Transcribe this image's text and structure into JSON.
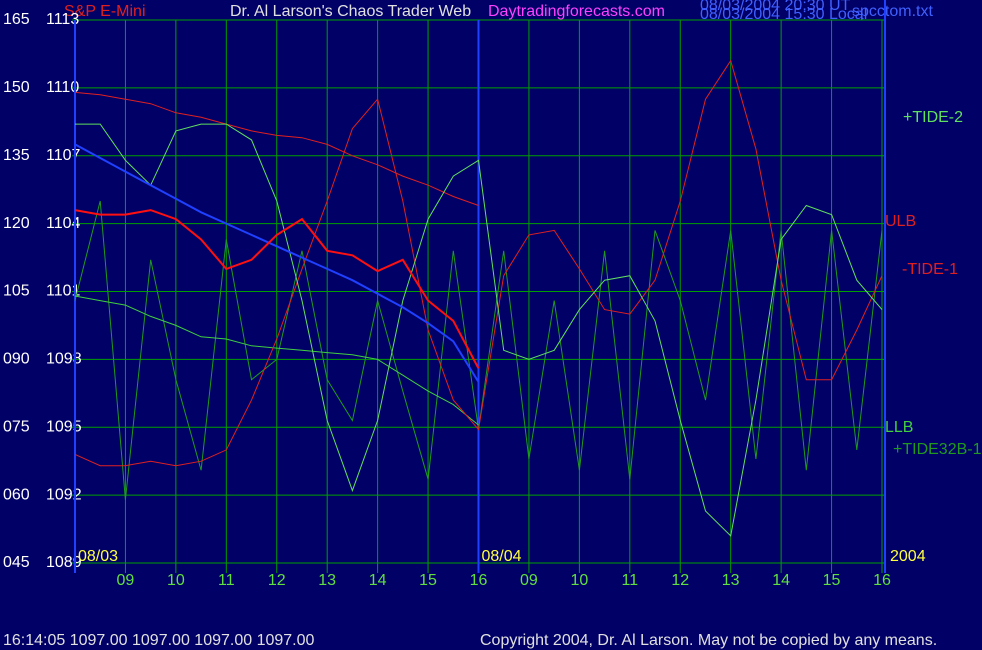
{
  "chart_data": {
    "type": "line",
    "title": "S&P E-Mini",
    "subtitle": "Dr. Al Larson's Chaos Trader Web",
    "website": "Daytradingforecasts.com",
    "timestamps": [
      "08/03/2004 20:30 UT",
      "08/03/2004 15:30 Local"
    ],
    "file_name": "spcctom.txt",
    "status_line": "16:14:05  1097.00 1097.00 1097.00 1097.00",
    "copyright": "Copyright 2004, Dr. Al Larson. May not be copied by any means.",
    "year": "2004",
    "date_labels": [
      {
        "value": 0,
        "label": "08/03"
      },
      {
        "value": 8,
        "label": "08/04"
      }
    ],
    "xlim": [
      0,
      16
    ],
    "xticks": [
      {
        "value": 1,
        "label": "09"
      },
      {
        "value": 2,
        "label": "10"
      },
      {
        "value": 3,
        "label": "11"
      },
      {
        "value": 4,
        "label": "12"
      },
      {
        "value": 5,
        "label": "13"
      },
      {
        "value": 6,
        "label": "14"
      },
      {
        "value": 7,
        "label": "15"
      },
      {
        "value": 8,
        "label": "16"
      },
      {
        "value": 9,
        "label": "09"
      },
      {
        "value": 10,
        "label": "10"
      },
      {
        "value": 11,
        "label": "11"
      },
      {
        "value": 12,
        "label": "12"
      },
      {
        "value": 13,
        "label": "13"
      },
      {
        "value": 14,
        "label": "14"
      },
      {
        "value": 15,
        "label": "15"
      },
      {
        "value": 16,
        "label": "16"
      }
    ],
    "ylim": [
      1089,
      1113
    ],
    "yticks": [
      1089,
      1092,
      1095,
      1098,
      1101,
      1104,
      1107,
      1110,
      1113
    ],
    "y2lim": [
      45,
      165
    ],
    "y2ticks": [
      {
        "value": 45,
        "label": "045"
      },
      {
        "value": 60,
        "label": "060"
      },
      {
        "value": 75,
        "label": "075"
      },
      {
        "value": 90,
        "label": "090"
      },
      105,
      120,
      135,
      150,
      165
    ],
    "grid": true,
    "x": [
      0,
      0.5,
      1,
      1.5,
      2,
      2.5,
      3,
      3.5,
      4,
      4.5,
      5,
      5.5,
      6,
      6.5,
      7,
      7.5,
      8,
      8.5,
      9,
      9.5,
      10,
      10.5,
      11,
      11.5,
      12,
      12.5,
      13,
      13.5,
      14,
      14.5,
      15,
      15.5,
      16
    ],
    "series": [
      {
        "name": "+TIDE32B-1",
        "color": "#1f9a1f",
        "values": [
          1100.6,
          1105.0,
          1091.8,
          1102.4,
          1097.1,
          1093.1,
          1103.3,
          1097.1,
          1098.0,
          1102.8,
          1097.1,
          1095.3,
          1100.6,
          1096.6,
          1092.7,
          1102.8,
          1094.9,
          1102.8,
          1093.6,
          1100.6,
          1093.1,
          1102.8,
          1092.7,
          1103.7,
          1100.6,
          1096.2,
          1103.7,
          1093.6,
          1103.7,
          1093.1,
          1103.7,
          1094.0,
          1103.7
        ]
      },
      {
        "name": "ULB",
        "color": "#e02020",
        "values": [
          1109.8,
          1109.7,
          1109.5,
          1109.3,
          1108.9,
          1108.7,
          1108.4,
          1108.1,
          1107.9,
          1107.8,
          1107.5,
          1107.0,
          1106.6,
          1106.1,
          1105.7,
          1105.2,
          1104.8,
          null,
          null,
          null,
          null,
          null,
          null,
          null,
          null,
          null,
          null,
          null,
          null,
          null,
          null,
          null,
          null
        ]
      },
      {
        "name": "LLB",
        "color": "#40d040",
        "values": [
          1100.8,
          1100.6,
          1100.4,
          1099.9,
          1099.5,
          1099.0,
          1098.9,
          1098.6,
          1098.5,
          1098.4,
          1098.3,
          1098.2,
          1098.0,
          1097.3,
          1096.6,
          1096.0,
          1095.1,
          null,
          null,
          null,
          null,
          null,
          null,
          null,
          null,
          null,
          null,
          null,
          null,
          null,
          null,
          null,
          null
        ]
      },
      {
        "name": "-TIDE-1",
        "color": "#e02020",
        "values": [
          1093.8,
          1093.3,
          1093.3,
          1093.5,
          1093.3,
          1093.5,
          1094.0,
          1096.2,
          1098.9,
          1102.0,
          1105.0,
          1108.2,
          1109.5,
          1105.0,
          1099.3,
          1096.2,
          1094.9,
          1101.7,
          1103.5,
          1103.7,
          1102.0,
          1100.2,
          1100.0,
          1101.5,
          1105.0,
          1109.5,
          1111.2,
          1107.3,
          1101.5,
          1097.1,
          1097.1,
          1099.3,
          1101.7
        ]
      },
      {
        "name": "+TIDE-2",
        "color": "#60e060",
        "values": [
          1108.4,
          1108.4,
          1106.8,
          1105.7,
          1108.1,
          1108.4,
          1108.4,
          1107.7,
          1105.0,
          1100.6,
          1095.3,
          1092.2,
          1095.3,
          1100.6,
          1104.2,
          1106.1,
          1106.8,
          1098.4,
          1098.0,
          1098.4,
          1100.2,
          1101.5,
          1101.7,
          1099.7,
          1095.3,
          1091.3,
          1090.2,
          1096.2,
          1103.3,
          1104.8,
          1104.4,
          1101.5,
          1100.2
        ]
      },
      {
        "color": "#2040ff",
        "values": [
          1107.5,
          1106.9,
          1106.3,
          1105.7,
          1105.1,
          1104.5,
          1104.0,
          1103.5,
          1103.0,
          1102.5,
          1102.0,
          1101.5,
          1100.9,
          1100.3,
          1099.6,
          1098.8,
          1097.0,
          null,
          null,
          null,
          null,
          null,
          null,
          null,
          null,
          null,
          null,
          null,
          null,
          null,
          null,
          null,
          null
        ]
      },
      {
        "color": "#ff1010",
        "values": [
          1104.6,
          1104.4,
          1104.4,
          1104.6,
          1104.2,
          1103.3,
          1102.0,
          1102.4,
          1103.5,
          1104.2,
          1102.8,
          1102.6,
          1101.9,
          1102.4,
          1100.6,
          1099.7,
          1097.6,
          null,
          null,
          null,
          null,
          null,
          null,
          null,
          null,
          null,
          null,
          null,
          null,
          null,
          null,
          null,
          null
        ]
      }
    ]
  }
}
